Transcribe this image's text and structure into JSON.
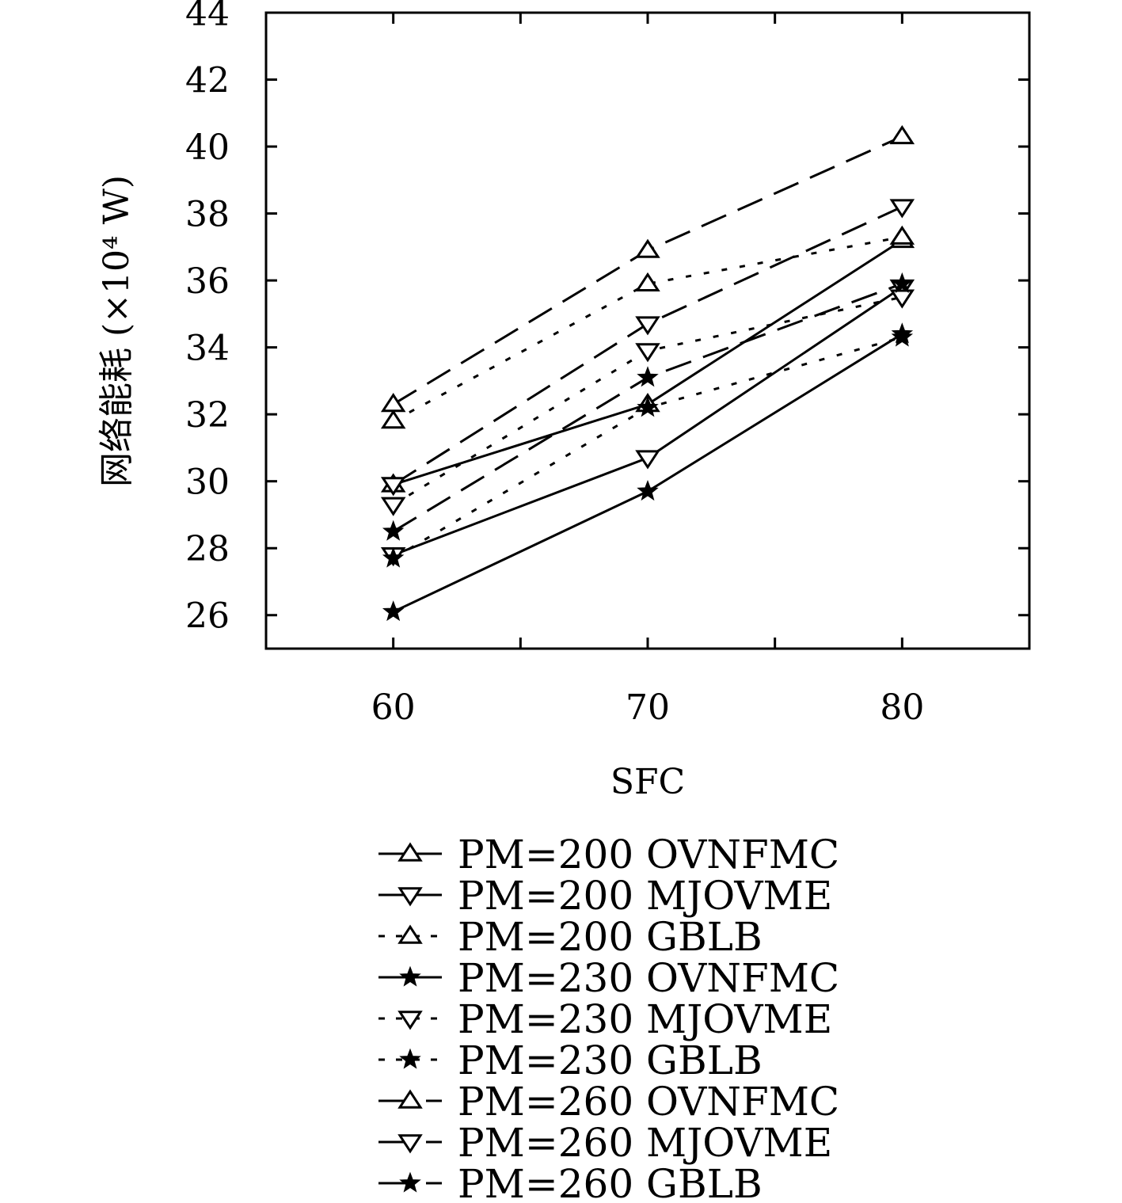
{
  "chart_data": {
    "type": "line",
    "title": "",
    "xlabel": "SFC",
    "ylabel": "网络能耗 (×10⁴ W)",
    "x": [
      60,
      70,
      80
    ],
    "xlim": [
      55,
      85
    ],
    "ylim": [
      25,
      44
    ],
    "xticks": [
      60,
      70,
      80
    ],
    "yticks": [
      26,
      28,
      30,
      32,
      34,
      36,
      38,
      40,
      42,
      44
    ],
    "grid": false,
    "legend_position": "below",
    "series": [
      {
        "name": "PM=200 OVNFMC",
        "values": [
          29.9,
          32.3,
          37.2
        ],
        "marker": "triangle-up",
        "line": "solid"
      },
      {
        "name": "PM=200 MJOVME",
        "values": [
          27.8,
          30.7,
          35.8
        ],
        "marker": "triangle-down",
        "line": "solid"
      },
      {
        "name": "PM=200 GBLB",
        "values": [
          31.8,
          35.9,
          37.3
        ],
        "marker": "triangle-up",
        "line": "dotted"
      },
      {
        "name": "PM=230 OVNFMC",
        "values": [
          26.1,
          29.7,
          34.4
        ],
        "marker": "star",
        "line": "solid"
      },
      {
        "name": "PM=230 MJOVME",
        "values": [
          29.3,
          33.9,
          35.5
        ],
        "marker": "triangle-down",
        "line": "dotted"
      },
      {
        "name": "PM=230 GBLB",
        "values": [
          27.7,
          32.2,
          34.3
        ],
        "marker": "star",
        "line": "dotted"
      },
      {
        "name": "PM=260 OVNFMC",
        "values": [
          32.3,
          36.9,
          40.3
        ],
        "marker": "triangle-up",
        "line": "dashed"
      },
      {
        "name": "PM=260 MJOVME",
        "values": [
          29.9,
          34.7,
          38.2
        ],
        "marker": "triangle-down",
        "line": "dashed"
      },
      {
        "name": "PM=260 GBLB",
        "values": [
          28.5,
          33.1,
          35.9
        ],
        "marker": "star",
        "line": "dashed"
      }
    ]
  }
}
